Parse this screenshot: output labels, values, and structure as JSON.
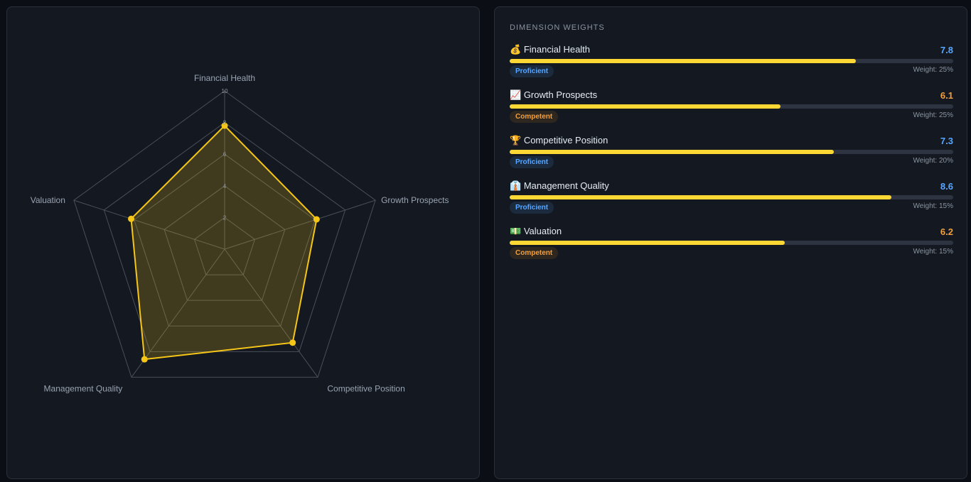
{
  "chart_data": {
    "type": "radar",
    "categories": [
      "Financial Health",
      "Growth Prospects",
      "Competitive Position",
      "Management Quality",
      "Valuation"
    ],
    "values": [
      7.8,
      6.1,
      7.3,
      8.6,
      6.2
    ],
    "rlim": [
      0,
      10
    ],
    "ticks": [
      "2",
      "4",
      "6",
      "8",
      "10"
    ],
    "color": "#f5c518"
  },
  "weights": {
    "title": "DIMENSION WEIGHTS",
    "items": [
      {
        "icon": "💰",
        "label": "Financial Health",
        "score": "7.8",
        "value": 7.8,
        "badge": "Proficient",
        "weight": "Weight: 25%"
      },
      {
        "icon": "📈",
        "label": "Growth Prospects",
        "score": "6.1",
        "value": 6.1,
        "badge": "Competent",
        "weight": "Weight: 25%"
      },
      {
        "icon": "🏆",
        "label": "Competitive Position",
        "score": "7.3",
        "value": 7.3,
        "badge": "Proficient",
        "weight": "Weight: 20%"
      },
      {
        "icon": "👔",
        "label": "Management Quality",
        "score": "8.6",
        "value": 8.6,
        "badge": "Proficient",
        "weight": "Weight: 15%"
      },
      {
        "icon": "💵",
        "label": "Valuation",
        "score": "6.2",
        "value": 6.2,
        "badge": "Competent",
        "weight": "Weight: 15%"
      }
    ]
  },
  "colors": {
    "proficient": "#58a6ff",
    "competent": "#f0a040",
    "bar": "#fdd835"
  }
}
